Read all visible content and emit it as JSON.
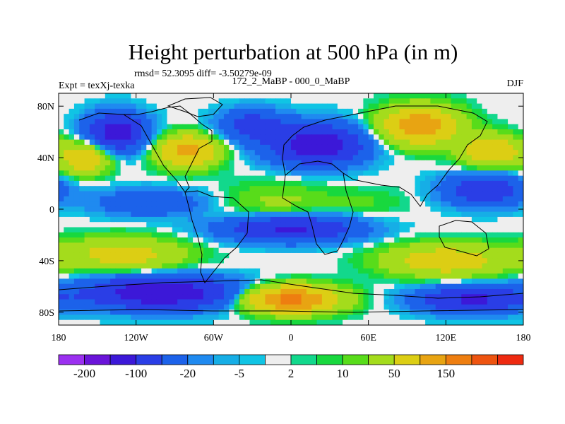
{
  "chart_data": {
    "type": "heatmap",
    "title": "Height perturbation at 500 hPa (in m)",
    "stats_text": "rmsd= 52.3095 diff= -3.50279e-09",
    "left_label": "Expt = texXj-texka",
    "center_label": "172_2_MaBP - 000_0_MaBP",
    "right_label": "DJF",
    "x_axis": {
      "range": [
        -180,
        180
      ],
      "ticks": [
        {
          "value": -180,
          "label": "180"
        },
        {
          "value": -120,
          "label": "120W"
        },
        {
          "value": -60,
          "label": "60W"
        },
        {
          "value": 0,
          "label": "0"
        },
        {
          "value": 60,
          "label": "60E"
        },
        {
          "value": 120,
          "label": "120E"
        },
        {
          "value": 180,
          "label": "180"
        }
      ]
    },
    "y_axis": {
      "range": [
        -90,
        90
      ],
      "ticks": [
        {
          "value": 80,
          "label": "80N"
        },
        {
          "value": 40,
          "label": "40N"
        },
        {
          "value": 0,
          "label": "0"
        },
        {
          "value": -40,
          "label": "40S"
        },
        {
          "value": -80,
          "label": "80S"
        }
      ]
    },
    "colorbar": {
      "colors": [
        "#9b30f0",
        "#6a14d9",
        "#3c18d8",
        "#2a3ee6",
        "#1c62ea",
        "#1f8af0",
        "#16aee6",
        "#10c4e4",
        "#eeeeee",
        "#12d88c",
        "#18d83e",
        "#58dc1a",
        "#a4dc1c",
        "#dcce14",
        "#e8a412",
        "#ee7e10",
        "#ee5410",
        "#ee2a10"
      ],
      "labels": [
        {
          "boundary": 1,
          "text": "-200"
        },
        {
          "boundary": 3,
          "text": "-100"
        },
        {
          "boundary": 5,
          "text": "-20"
        },
        {
          "boundary": 7,
          "text": "-5"
        },
        {
          "boundary": 9,
          "text": "2"
        },
        {
          "boundary": 11,
          "text": "10"
        },
        {
          "boundary": 13,
          "text": "50"
        },
        {
          "boundary": 15,
          "text": "150"
        }
      ]
    },
    "field_blobs": [
      {
        "lon": -135,
        "lat": 60,
        "amp": -130,
        "slon": 22,
        "slat": 14
      },
      {
        "lon": -160,
        "lat": 40,
        "amp": 90,
        "slon": 18,
        "slat": 12
      },
      {
        "lon": -80,
        "lat": 45,
        "amp": 120,
        "slon": 22,
        "slat": 12
      },
      {
        "lon": -110,
        "lat": 5,
        "amp": -50,
        "slon": 40,
        "slat": 10
      },
      {
        "lon": -30,
        "lat": 65,
        "amp": -70,
        "slon": 25,
        "slat": 12
      },
      {
        "lon": 20,
        "lat": 50,
        "amp": -140,
        "slon": 35,
        "slat": 15
      },
      {
        "lon": 100,
        "lat": 65,
        "amp": 140,
        "slon": 28,
        "slat": 14
      },
      {
        "lon": 155,
        "lat": 45,
        "amp": 90,
        "slon": 22,
        "slat": 12
      },
      {
        "lon": 150,
        "lat": 15,
        "amp": -90,
        "slon": 30,
        "slat": 12
      },
      {
        "lon": -10,
        "lat": 5,
        "amp": 25,
        "slon": 40,
        "slat": 15
      },
      {
        "lon": 60,
        "lat": 5,
        "amp": 10,
        "slon": 30,
        "slat": 12
      },
      {
        "lon": -130,
        "lat": -35,
        "amp": 70,
        "slon": 45,
        "slat": 12
      },
      {
        "lon": 120,
        "lat": -40,
        "amp": 80,
        "slon": 45,
        "slat": 12
      },
      {
        "lon": 0,
        "lat": -15,
        "amp": -110,
        "slon": 50,
        "slat": 10
      },
      {
        "lon": -100,
        "lat": -65,
        "amp": -150,
        "slon": 55,
        "slat": 12
      },
      {
        "lon": 0,
        "lat": -70,
        "amp": 170,
        "slon": 35,
        "slat": 10
      },
      {
        "lon": 140,
        "lat": -70,
        "amp": -110,
        "slon": 40,
        "slat": 10
      }
    ]
  }
}
